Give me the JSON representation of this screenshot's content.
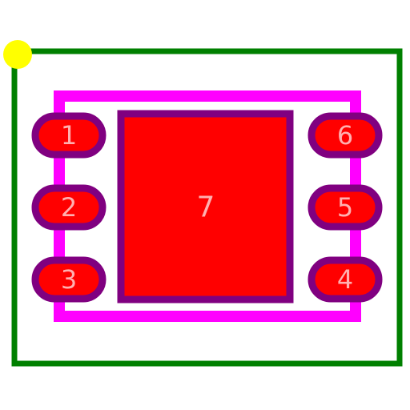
{
  "colors": {
    "background": "#ffffff",
    "courtyard": "#008000",
    "silkscreen": "#ff00ff",
    "pad_fill": "#ff0000",
    "pad_outline": "#800080",
    "label": "#ffb0b0",
    "pin1_marker": "#ffff00"
  },
  "pads": [
    {
      "label": "1"
    },
    {
      "label": "2"
    },
    {
      "label": "3"
    },
    {
      "label": "4"
    },
    {
      "label": "5"
    },
    {
      "label": "6"
    }
  ],
  "thermal_pad": {
    "label": "7"
  },
  "marker": {
    "icon": "pin1-marker-icon"
  }
}
